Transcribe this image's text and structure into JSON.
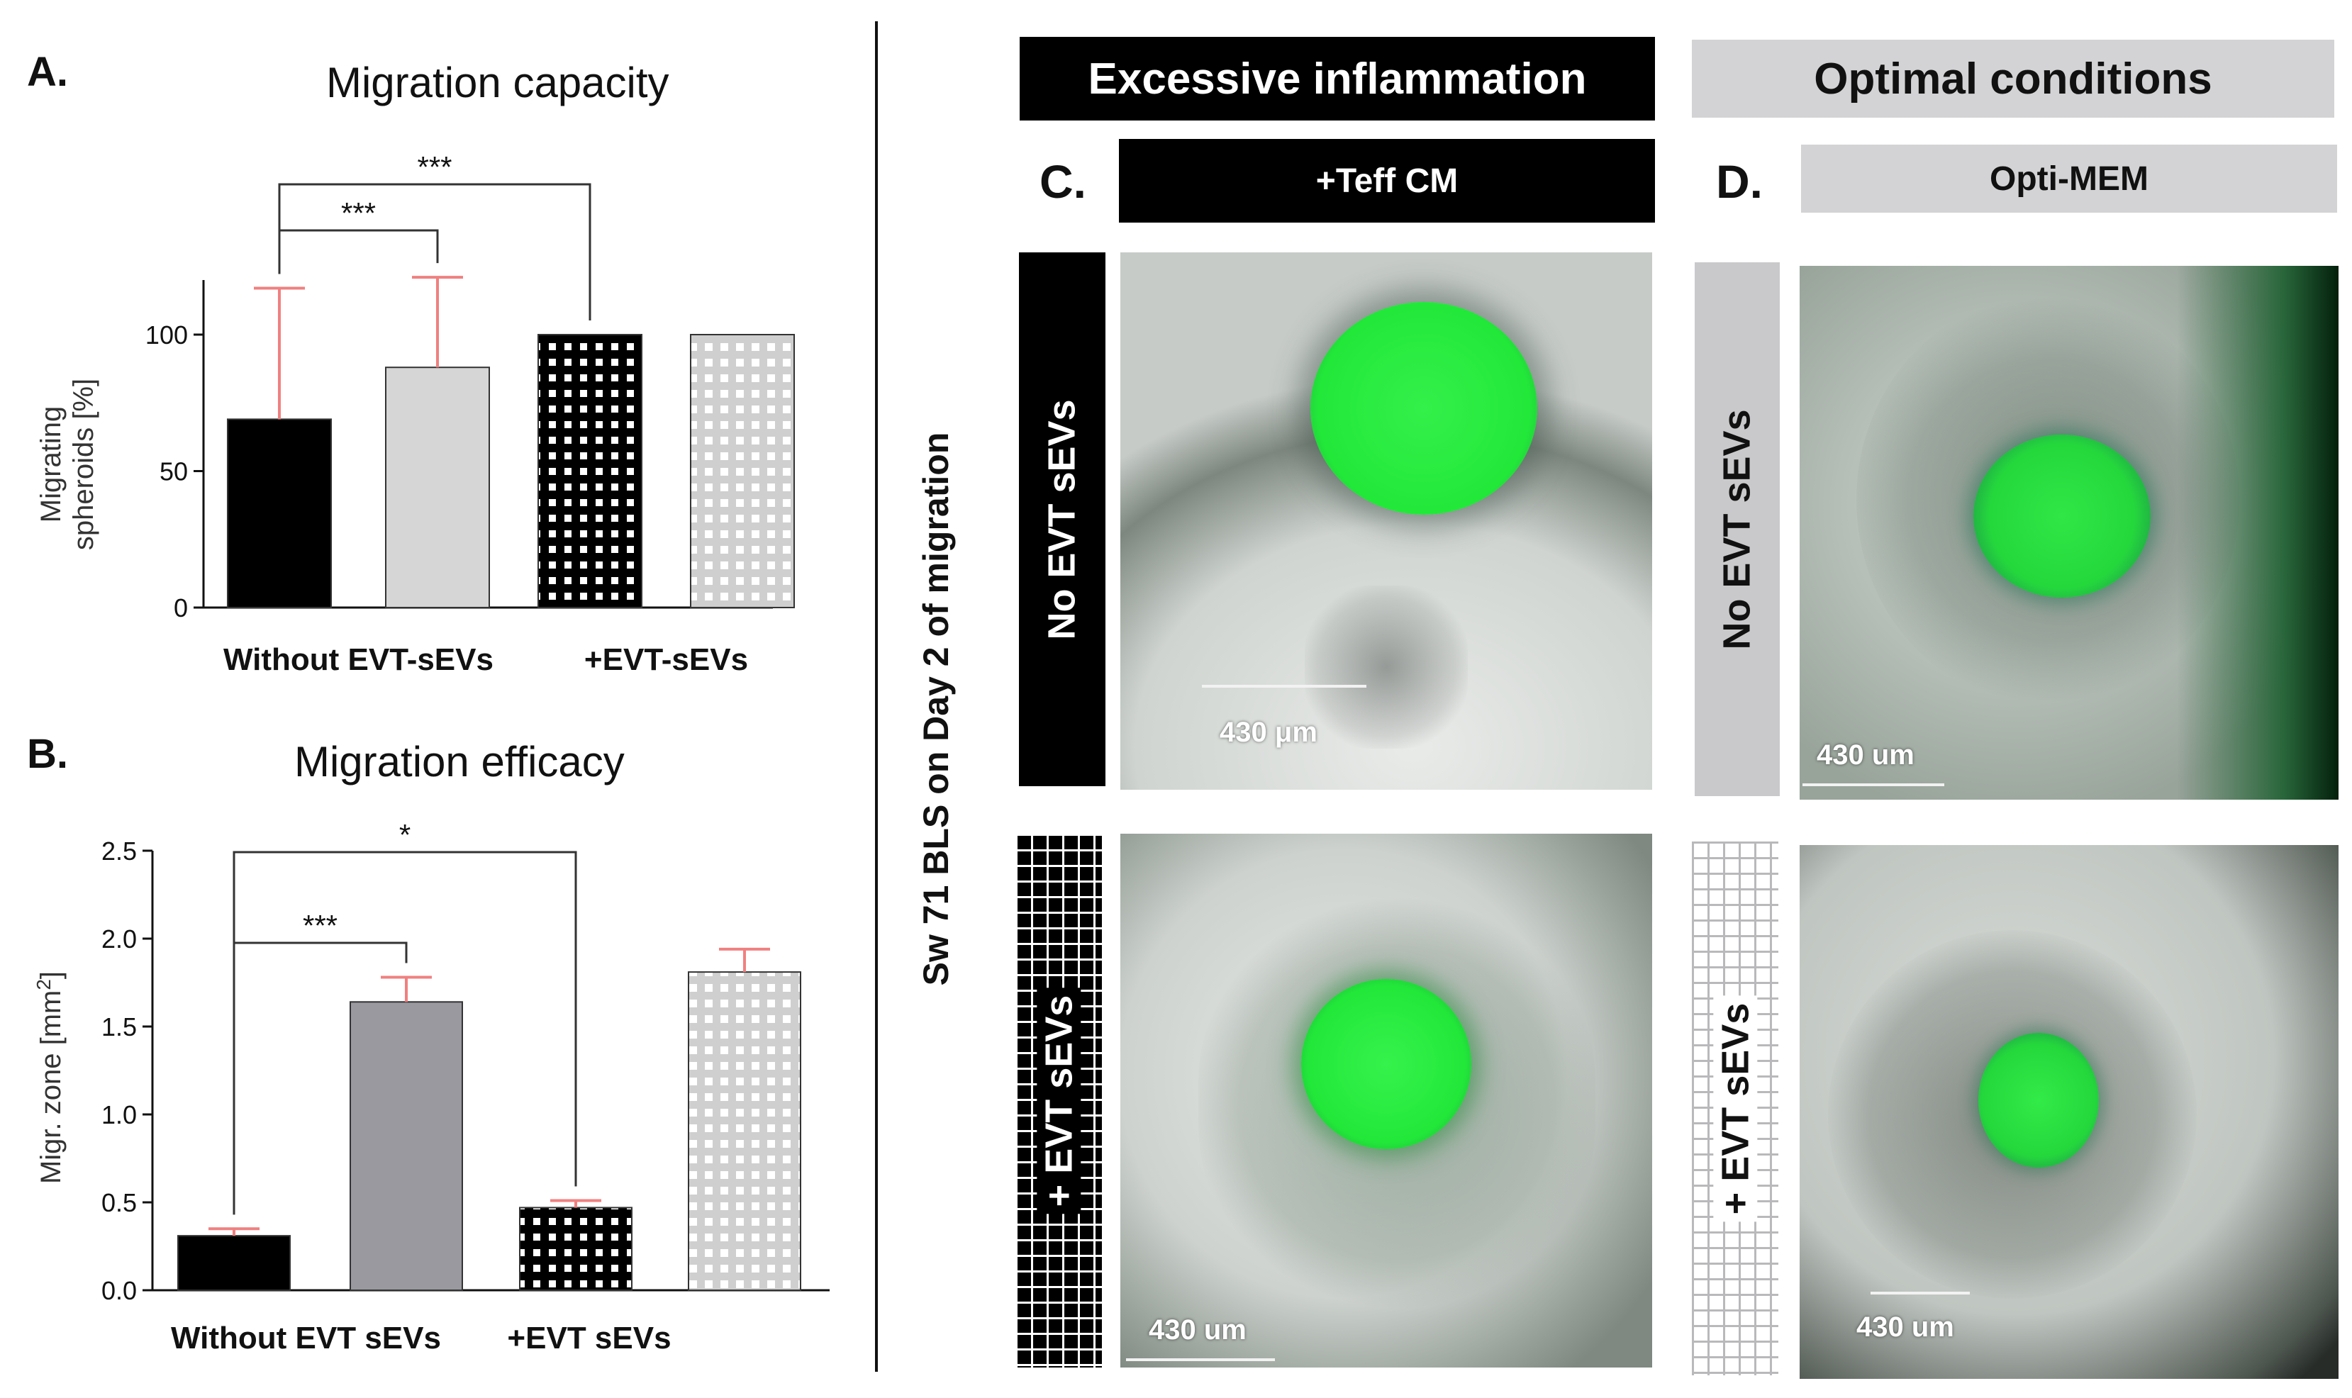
{
  "chart_data": [
    {
      "type": "bar",
      "panel": "A.",
      "title": "Migration capacity",
      "ylabel": "Migrating spheroids [%]",
      "ylabel_lines": [
        "Migrating",
        "spheroids [%]"
      ],
      "ylim": [
        0,
        120
      ],
      "yticks": [
        0,
        50,
        100
      ],
      "group_labels": [
        "Without EVT-sEVs",
        "+EVT-sEVs"
      ],
      "bars": [
        {
          "value": 69,
          "error": 48,
          "fill": "black"
        },
        {
          "value": 88,
          "error": 33,
          "fill": "lightgray"
        },
        {
          "value": 100,
          "error": 0,
          "fill": "checker-dark"
        },
        {
          "value": 100,
          "error": 0,
          "fill": "checker-light"
        }
      ],
      "significance": [
        {
          "from": 0,
          "to": 1,
          "label": "***"
        },
        {
          "from": 0,
          "to": 2,
          "label": "***"
        }
      ],
      "error_color": "#f08080",
      "grid": false
    },
    {
      "type": "bar",
      "panel": "B.",
      "title": "Migration efficacy",
      "ylabel": "Migr. zone [mm2]",
      "ylabel_main": "Migr. zone [mm",
      "ylabel_sup": "2",
      "ylabel_end": "]",
      "ylim": [
        0,
        2.5
      ],
      "yticks": [
        "0.0",
        "0.5",
        "1.0",
        "1.5",
        "2.0",
        "2.5"
      ],
      "group_labels": [
        "Without EVT sEVs",
        "+EVT sEVs"
      ],
      "bars": [
        {
          "value": 0.31,
          "error": 0.04,
          "fill": "black"
        },
        {
          "value": 1.64,
          "error": 0.14,
          "fill": "gray"
        },
        {
          "value": 0.47,
          "error": 0.04,
          "fill": "checker-dark"
        },
        {
          "value": 1.81,
          "error": 0.13,
          "fill": "checker-light"
        }
      ],
      "significance": [
        {
          "from": 0,
          "to": 1,
          "label": "***"
        },
        {
          "from": 0,
          "to": 2,
          "label": "*"
        }
      ],
      "error_color": "#f08080",
      "grid": false
    }
  ],
  "figure": {
    "vertical_caption": "Sw 71 BLS on Day 2 of migration",
    "header_c": "Excessive inflammation",
    "header_d": "Optimal conditions",
    "panel_c_letter": "C.",
    "panel_d_letter": "D.",
    "sub_c": "+Teff CM",
    "sub_d": "Opti-MEM",
    "row_no_evt": "No EVT sEVs",
    "row_plus_evt": "+ EVT sEVs",
    "scale_c_top": "430 μm",
    "scale_c_bottom": "430 um",
    "scale_d_top": "430 um",
    "scale_d_bottom": "430 um"
  },
  "colors": {
    "fluorescence": "#22e83a",
    "dark_header": "#000000",
    "light_header": "#d3d3d5",
    "error_bar": "#f08080"
  }
}
